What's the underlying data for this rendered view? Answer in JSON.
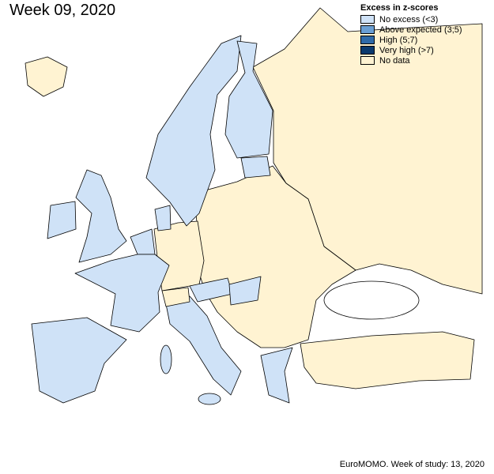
{
  "title": "Week 09, 2020",
  "legend": {
    "title": "Excess in z-scores",
    "items": [
      {
        "label": "No excess (<3)",
        "color": "#cfe2f7"
      },
      {
        "label": "Above expected (3;5)",
        "color": "#6a9fd4"
      },
      {
        "label": "High (5;7)",
        "color": "#2f6aa8"
      },
      {
        "label": "Very high (>7)",
        "color": "#0b3a6e"
      },
      {
        "label": "No data",
        "color": "#fff3d2"
      }
    ]
  },
  "footer": "EuroMOMO. Week of study: 13, 2020"
}
